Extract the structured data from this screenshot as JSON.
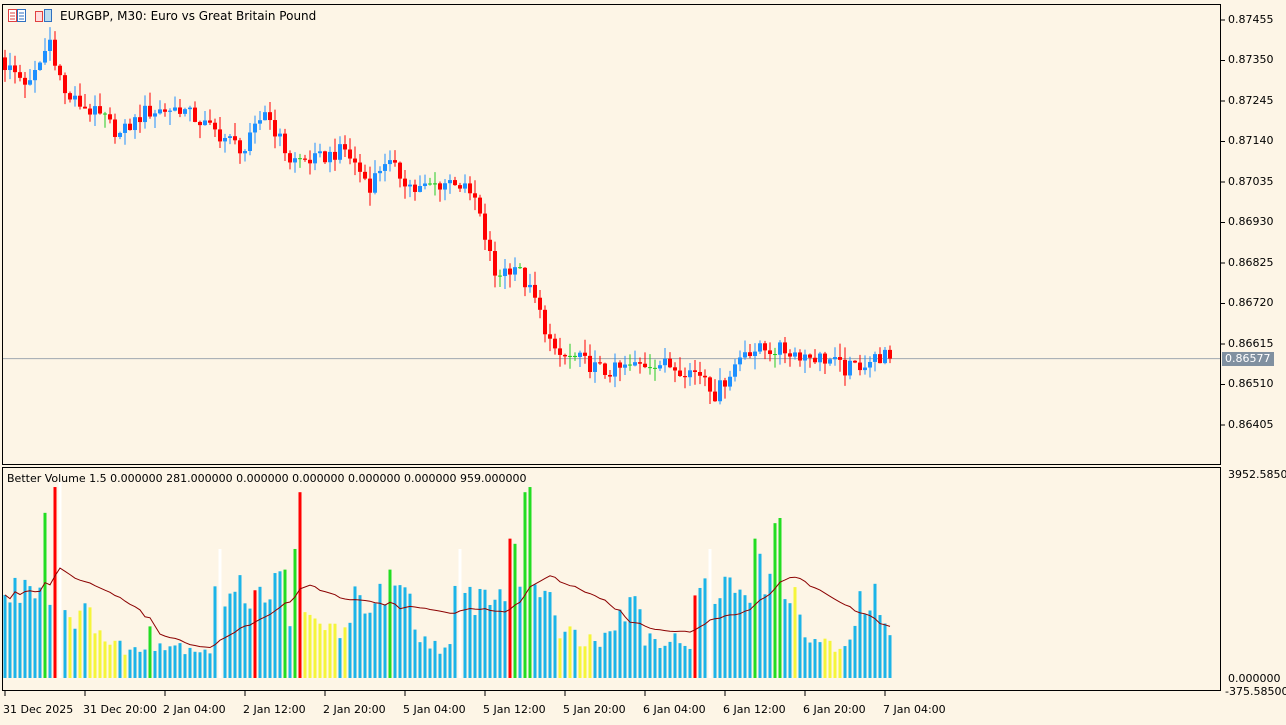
{
  "header": {
    "title": "EURGBP, M30:  Euro vs Great Britain Pound",
    "icons": [
      "trade-panel-icon",
      "one-click-trading-icon"
    ]
  },
  "indicator": {
    "title": "Better Volume 1.5 0.000000 281.000000 0.000000 0.000000 0.000000 0.000000 959.000000",
    "axis_labels": [
      "3952.58500",
      "0.000000",
      "-375.585000"
    ]
  },
  "colors": {
    "background": "#FDF5E6",
    "bull": "#1E90FF",
    "bear": "#FF0000",
    "doji": "#22CC22",
    "vol_normal": "#1CB4E8",
    "vol_low": "#F5F53A",
    "vol_climax": "#FF0000",
    "vol_churn": "#22DD22",
    "vol_climax_churn": "#FFFFFF",
    "ma": "#8B0000",
    "price_line": "#A0A8B0"
  },
  "chart_data": [
    {
      "type": "candlestick",
      "title": "EURGBP, M30",
      "bars": 178,
      "ylim": [
        0.8637,
        0.87495
      ],
      "y_ticks": [
        "0.87455",
        "0.87350",
        "0.87245",
        "0.87140",
        "0.87035",
        "0.86930",
        "0.86825",
        "0.86720",
        "0.86615",
        "0.86510",
        "0.86405"
      ],
      "current_price": "0.86577",
      "x_ticks": [
        {
          "bar": 0,
          "label": "31 Dec 2025"
        },
        {
          "bar": 16,
          "label": "31 Dec 20:00"
        },
        {
          "bar": 32,
          "label": "2 Jan 04:00"
        },
        {
          "bar": 48,
          "label": "2 Jan 12:00"
        },
        {
          "bar": 64,
          "label": "2 Jan 20:00"
        },
        {
          "bar": 80,
          "label": "5 Jan 04:00"
        },
        {
          "bar": 96,
          "label": "5 Jan 12:00"
        },
        {
          "bar": 112,
          "label": "5 Jan 20:00"
        },
        {
          "bar": 128,
          "label": "6 Jan 04:00"
        },
        {
          "bar": 144,
          "label": "6 Jan 12:00"
        },
        {
          "bar": 160,
          "label": "6 Jan 20:00"
        },
        {
          "bar": 176,
          "label": "7 Jan 04:00"
        }
      ],
      "close_keypoints": [
        [
          0,
          0.87338
        ],
        [
          5,
          0.87286
        ],
        [
          9,
          0.87403
        ],
        [
          12,
          0.87261
        ],
        [
          20,
          0.87196
        ],
        [
          23,
          0.87157
        ],
        [
          28,
          0.87216
        ],
        [
          35,
          0.87227
        ],
        [
          43,
          0.87157
        ],
        [
          48,
          0.87118
        ],
        [
          52,
          0.87222
        ],
        [
          57,
          0.87092
        ],
        [
          62,
          0.87092
        ],
        [
          68,
          0.87118
        ],
        [
          73,
          0.87027
        ],
        [
          76,
          0.87092
        ],
        [
          82,
          0.87014
        ],
        [
          90,
          0.8704
        ],
        [
          94,
          0.86988
        ],
        [
          98,
          0.86794
        ],
        [
          102,
          0.8682
        ],
        [
          106,
          0.86729
        ],
        [
          110,
          0.86586
        ],
        [
          115,
          0.86574
        ],
        [
          120,
          0.86542
        ],
        [
          130,
          0.86568
        ],
        [
          140,
          0.86535
        ],
        [
          142,
          0.86483
        ],
        [
          148,
          0.866
        ],
        [
          155,
          0.866
        ],
        [
          165,
          0.86574
        ],
        [
          168,
          0.86548
        ],
        [
          176,
          0.86586
        ],
        [
          177,
          0.86577
        ]
      ]
    },
    {
      "type": "bar",
      "title": "Better Volume 1.5",
      "ylim": [
        -375.585,
        3952.585
      ],
      "ma_period": 20,
      "volume_keypoints": [
        [
          0,
          1500
        ],
        [
          6,
          2000
        ],
        [
          8,
          1700
        ],
        [
          11,
          1900
        ],
        [
          12,
          1300
        ],
        [
          19,
          1100
        ],
        [
          20,
          700
        ],
        [
          27,
          500
        ],
        [
          29,
          700
        ],
        [
          41,
          550
        ],
        [
          42,
          1500
        ],
        [
          55,
          1800
        ],
        [
          57,
          1300
        ],
        [
          60,
          1100
        ],
        [
          69,
          900
        ],
        [
          70,
          1500
        ],
        [
          81,
          1500
        ],
        [
          82,
          800
        ],
        [
          89,
          550
        ],
        [
          90,
          1500
        ],
        [
          101,
          1700
        ],
        [
          106,
          2000
        ],
        [
          110,
          1600
        ],
        [
          111,
          900
        ],
        [
          119,
          700
        ],
        [
          120,
          1100
        ],
        [
          127,
          1500
        ],
        [
          128,
          800
        ],
        [
          137,
          700
        ],
        [
          138,
          1800
        ],
        [
          144,
          1700
        ],
        [
          155,
          2100
        ],
        [
          157,
          1800
        ],
        [
          160,
          800
        ],
        [
          168,
          500
        ],
        [
          171,
          1400
        ],
        [
          174,
          1500
        ],
        [
          177,
          700
        ]
      ],
      "special_bars": [
        {
          "bar": 8,
          "value": 3200,
          "kind": "churn"
        },
        {
          "bar": 10,
          "value": 3700,
          "kind": "climax"
        },
        {
          "bar": 11,
          "value": 3800,
          "kind": "climax_churn"
        },
        {
          "bar": 29,
          "value": 1000,
          "kind": "churn"
        },
        {
          "bar": 43,
          "value": 2500,
          "kind": "climax_churn"
        },
        {
          "bar": 50,
          "value": 1700,
          "kind": "climax"
        },
        {
          "bar": 56,
          "value": 2100,
          "kind": "churn"
        },
        {
          "bar": 58,
          "value": 2500,
          "kind": "churn"
        },
        {
          "bar": 59,
          "value": 3600,
          "kind": "climax"
        },
        {
          "bar": 77,
          "value": 2100,
          "kind": "churn"
        },
        {
          "bar": 91,
          "value": 2500,
          "kind": "climax_churn"
        },
        {
          "bar": 101,
          "value": 2700,
          "kind": "climax"
        },
        {
          "bar": 102,
          "value": 2600,
          "kind": "churn"
        },
        {
          "bar": 104,
          "value": 3600,
          "kind": "churn"
        },
        {
          "bar": 105,
          "value": 3700,
          "kind": "churn"
        },
        {
          "bar": 138,
          "value": 1600,
          "kind": "climax"
        },
        {
          "bar": 141,
          "value": 2500,
          "kind": "climax_churn"
        },
        {
          "bar": 150,
          "value": 2700,
          "kind": "churn"
        },
        {
          "bar": 154,
          "value": 3000,
          "kind": "churn"
        },
        {
          "bar": 155,
          "value": 3100,
          "kind": "churn"
        }
      ],
      "low_ranges": [
        [
          13,
          26
        ],
        [
          60,
          68
        ],
        [
          111,
          118
        ],
        [
          158,
          167
        ]
      ]
    }
  ]
}
